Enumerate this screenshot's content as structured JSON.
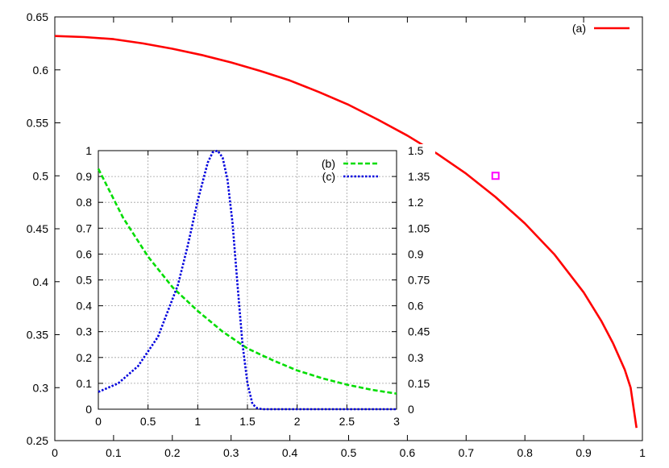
{
  "chart_data": [
    {
      "type": "line",
      "title": "",
      "xlabel": "",
      "ylabel": "",
      "xlim": [
        0,
        1
      ],
      "ylim": [
        0.25,
        0.65
      ],
      "xticks": [
        0,
        0.1,
        0.2,
        0.3,
        0.4,
        0.5,
        0.6,
        0.7,
        0.8,
        0.9,
        1
      ],
      "yticks": [
        0.25,
        0.3,
        0.35,
        0.4,
        0.45,
        0.5,
        0.55,
        0.6,
        0.65
      ],
      "xtick_labels": [
        "0",
        "0.1",
        "0.2",
        "0.3",
        "0.4",
        "0.5",
        "0.6",
        "0.7",
        "0.8",
        "0.9",
        "1"
      ],
      "ytick_labels": [
        "0.25",
        "0.3",
        "0.35",
        "0.4",
        "0.45",
        "0.5",
        "0.55",
        "0.6",
        "0.65"
      ],
      "grid": false,
      "legend_position": "top-right",
      "series": [
        {
          "name": "(a)",
          "color": "#ff0000",
          "style": "solid",
          "x": [
            0,
            0.05,
            0.1,
            0.15,
            0.2,
            0.25,
            0.3,
            0.35,
            0.4,
            0.45,
            0.5,
            0.55,
            0.6,
            0.65,
            0.7,
            0.75,
            0.8,
            0.85,
            0.9,
            0.93,
            0.95,
            0.97,
            0.98,
            0.99
          ],
          "y": [
            0.632,
            0.631,
            0.629,
            0.625,
            0.62,
            0.614,
            0.607,
            0.599,
            0.59,
            0.579,
            0.567,
            0.553,
            0.538,
            0.521,
            0.502,
            0.48,
            0.455,
            0.426,
            0.39,
            0.363,
            0.342,
            0.317,
            0.3,
            0.262
          ]
        }
      ],
      "marker": {
        "x": 0.75,
        "y": 0.5,
        "color": "#ff00ff",
        "shape": "square"
      }
    },
    {
      "type": "line",
      "title": "",
      "xlabel": "",
      "ylabel": "",
      "xlim": [
        0,
        3
      ],
      "ylim_left": [
        0,
        1
      ],
      "ylim_right": [
        0,
        1.5
      ],
      "xticks": [
        0,
        0.5,
        1,
        1.5,
        2,
        2.5,
        3
      ],
      "xtick_labels": [
        "0",
        "0.5",
        "1",
        "1.5",
        "2",
        "2.5",
        "3"
      ],
      "yticks_left": [
        0,
        0.1,
        0.2,
        0.3,
        0.4,
        0.5,
        0.6,
        0.7,
        0.8,
        0.9,
        1
      ],
      "ytick_labels_left": [
        "0",
        "0.1",
        "0.2",
        "0.3",
        "0.4",
        "0.5",
        "0.6",
        "0.7",
        "0.8",
        "0.9",
        "1"
      ],
      "yticks_right": [
        0,
        0.15,
        0.3,
        0.45,
        0.6,
        0.75,
        0.9,
        1.05,
        1.2,
        1.35,
        1.5
      ],
      "ytick_labels_right": [
        "0",
        "0.15",
        "0.3",
        "0.45",
        "0.6",
        "0.75",
        "0.9",
        "1.05",
        "1.2",
        "1.35",
        "1.5"
      ],
      "grid": true,
      "legend_position": "top-right",
      "series": [
        {
          "name": "(b)",
          "color": "#00dd00",
          "style": "dashed",
          "axis": "left",
          "x": [
            0,
            0.25,
            0.5,
            0.75,
            1.0,
            1.25,
            1.5,
            1.75,
            2.0,
            2.25,
            2.5,
            2.75,
            3.0
          ],
          "y": [
            0.93,
            0.74,
            0.59,
            0.47,
            0.38,
            0.3,
            0.235,
            0.19,
            0.15,
            0.12,
            0.095,
            0.075,
            0.06
          ]
        },
        {
          "name": "(c)",
          "color": "#0000dd",
          "style": "dotted",
          "axis": "right",
          "x": [
            0,
            0.2,
            0.4,
            0.6,
            0.8,
            0.9,
            1.0,
            1.1,
            1.15,
            1.2,
            1.25,
            1.3,
            1.35,
            1.4,
            1.45,
            1.5,
            1.55,
            1.6,
            1.65,
            1.7,
            2.0,
            2.5,
            3.0
          ],
          "y": [
            0.1,
            0.15,
            0.25,
            0.42,
            0.72,
            0.95,
            1.21,
            1.43,
            1.49,
            1.5,
            1.46,
            1.33,
            1.08,
            0.72,
            0.38,
            0.15,
            0.03,
            0.005,
            0.0,
            0.0,
            0.0,
            0.0,
            0.0
          ]
        }
      ]
    }
  ]
}
